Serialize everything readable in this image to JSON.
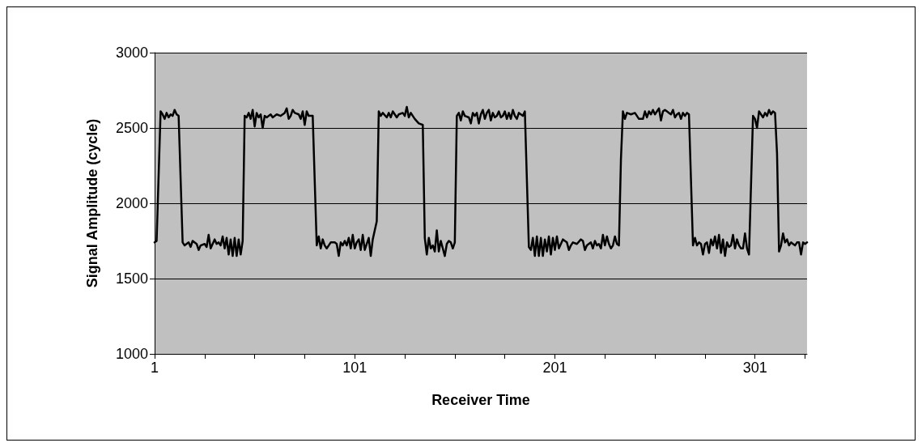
{
  "chart_data": {
    "type": "line",
    "xlabel": "Receiver Time",
    "ylabel": "Signal Amplitude (cycle)",
    "xlim": [
      1,
      327
    ],
    "ylim": [
      1000,
      3000
    ],
    "xticks": [
      1,
      {
        "value": 26,
        "label": null
      },
      {
        "value": 51,
        "label": null
      },
      {
        "value": 76,
        "label": null
      },
      101,
      {
        "value": 126,
        "label": null
      },
      {
        "value": 151,
        "label": null
      },
      {
        "value": 176,
        "label": null
      },
      201,
      {
        "value": 226,
        "label": null
      },
      {
        "value": 251,
        "label": null
      },
      {
        "value": 276,
        "label": null
      },
      301,
      {
        "value": 326,
        "label": null
      }
    ],
    "yticks": [
      1000,
      1500,
      2000,
      2500,
      3000
    ],
    "grid": "y",
    "marker": "none",
    "line_style": "solid",
    "series": [
      {
        "color": "#000000",
        "x": [
          1,
          2,
          4,
          5,
          6,
          7,
          8,
          9,
          10,
          11,
          12,
          13,
          15,
          16,
          18,
          19,
          20,
          22,
          23,
          24,
          26,
          27,
          28,
          29,
          31,
          32,
          33,
          34,
          35,
          36,
          37,
          38,
          39,
          40,
          41,
          42,
          43,
          44,
          45,
          46,
          47,
          48,
          49,
          50,
          51,
          52,
          53,
          54,
          55,
          56,
          57,
          59,
          60,
          62,
          64,
          66,
          67,
          68,
          69,
          70,
          71,
          73,
          74,
          75,
          76,
          77,
          78,
          80,
          82,
          83,
          84,
          85,
          86,
          87,
          88,
          89,
          91,
          92,
          93,
          94,
          95,
          96,
          97,
          98,
          99,
          100,
          101,
          102,
          103,
          104,
          105,
          106,
          107,
          108,
          109,
          110,
          112,
          113,
          114,
          115,
          117,
          118,
          119,
          120,
          122,
          123,
          125,
          126,
          127,
          128,
          129,
          131,
          133,
          135,
          136,
          137,
          138,
          139,
          140,
          141,
          142,
          143,
          144,
          145,
          146,
          147,
          148,
          149,
          150,
          151,
          152,
          153,
          154,
          155,
          156,
          158,
          159,
          160,
          161,
          162,
          163,
          164,
          165,
          166,
          167,
          168,
          169,
          170,
          171,
          172,
          173,
          174,
          175,
          176,
          177,
          178,
          179,
          180,
          181,
          182,
          183,
          185,
          186,
          188,
          189,
          190,
          191,
          192,
          193,
          194,
          195,
          196,
          197,
          198,
          199,
          200,
          201,
          202,
          203,
          205,
          207,
          208,
          209,
          210,
          212,
          214,
          215,
          216,
          217,
          219,
          220,
          221,
          222,
          223,
          224,
          225,
          226,
          227,
          228,
          229,
          230,
          231,
          232,
          233,
          234,
          235,
          236,
          237,
          239,
          241,
          242,
          243,
          245,
          246,
          247,
          248,
          249,
          250,
          251,
          252,
          253,
          254,
          255,
          256,
          257,
          258,
          259,
          260,
          261,
          262,
          263,
          264,
          265,
          266,
          267,
          268,
          270,
          271,
          272,
          273,
          274,
          275,
          276,
          277,
          278,
          279,
          280,
          281,
          282,
          283,
          284,
          285,
          286,
          287,
          288,
          289,
          290,
          291,
          292,
          293,
          294,
          295,
          296,
          297,
          298,
          300,
          301,
          302,
          303,
          304,
          305,
          306,
          307,
          308,
          309,
          310,
          311,
          312,
          313,
          314,
          315,
          316,
          317,
          318,
          319,
          320,
          321,
          322,
          323,
          324,
          325,
          326,
          327
        ],
        "values": [
          1740,
          1750,
          2610,
          2590,
          2560,
          2600,
          2570,
          2590,
          2580,
          2620,
          2590,
          2580,
          1740,
          1720,
          1740,
          1710,
          1750,
          1730,
          1690,
          1720,
          1730,
          1710,
          1790,
          1700,
          1760,
          1730,
          1740,
          1720,
          1780,
          1700,
          1770,
          1660,
          1760,
          1650,
          1770,
          1650,
          1760,
          1660,
          1750,
          2580,
          2570,
          2600,
          2560,
          2620,
          2510,
          2600,
          2570,
          2590,
          2500,
          2580,
          2570,
          2590,
          2570,
          2590,
          2580,
          2600,
          2630,
          2560,
          2580,
          2620,
          2600,
          2590,
          2560,
          2610,
          2520,
          2610,
          2580,
          2580,
          1720,
          1780,
          1700,
          1760,
          1720,
          1700,
          1720,
          1740,
          1740,
          1730,
          1650,
          1740,
          1720,
          1750,
          1720,
          1770,
          1700,
          1790,
          1700,
          1740,
          1760,
          1690,
          1790,
          1690,
          1730,
          1770,
          1650,
          1760,
          1880,
          2610,
          2580,
          2600,
          2570,
          2600,
          2570,
          2610,
          2570,
          2590,
          2600,
          2580,
          2640,
          2570,
          2600,
          2560,
          2530,
          2520,
          1770,
          1660,
          1770,
          1700,
          1720,
          1680,
          1820,
          1680,
          1750,
          1700,
          1650,
          1730,
          1750,
          1740,
          1700,
          1740,
          2580,
          2600,
          2550,
          2610,
          2580,
          2570,
          2530,
          2600,
          2580,
          2600,
          2530,
          2590,
          2620,
          2560,
          2600,
          2620,
          2550,
          2600,
          2570,
          2580,
          2610,
          2570,
          2580,
          2610,
          2560,
          2600,
          2560,
          2620,
          2580,
          2560,
          2600,
          2580,
          2610,
          1710,
          1690,
          1770,
          1650,
          1780,
          1650,
          1770,
          1650,
          1760,
          1680,
          1780,
          1660,
          1770,
          1690,
          1780,
          1700,
          1760,
          1740,
          1690,
          1720,
          1740,
          1730,
          1760,
          1750,
          1690,
          1720,
          1740,
          1700,
          1750,
          1720,
          1730,
          1700,
          1790,
          1720,
          1780,
          1730,
          1700,
          1720,
          1780,
          1730,
          1720,
          2290,
          2610,
          2560,
          2600,
          2590,
          2600,
          2580,
          2560,
          2560,
          2610,
          2570,
          2610,
          2590,
          2620,
          2590,
          2610,
          2630,
          2550,
          2610,
          2620,
          2610,
          2600,
          2590,
          2620,
          2570,
          2590,
          2600,
          2560,
          2600,
          2580,
          2600,
          2590,
          1720,
          1770,
          1720,
          1740,
          1730,
          1660,
          1730,
          1740,
          1670,
          1760,
          1720,
          1780,
          1700,
          1790,
          1670,
          1760,
          1650,
          1740,
          1710,
          1720,
          1790,
          1700,
          1760,
          1720,
          1700,
          1700,
          1800,
          1700,
          1660,
          2580,
          2560,
          2500,
          2610,
          2590,
          2570,
          2600,
          2580,
          2620,
          2590,
          2610,
          2600,
          2330,
          1680,
          1720,
          1800,
          1740,
          1760,
          1720,
          1740,
          1730,
          1720,
          1740,
          1740,
          1660,
          1740,
          1730,
          1740
        ]
      }
    ]
  }
}
